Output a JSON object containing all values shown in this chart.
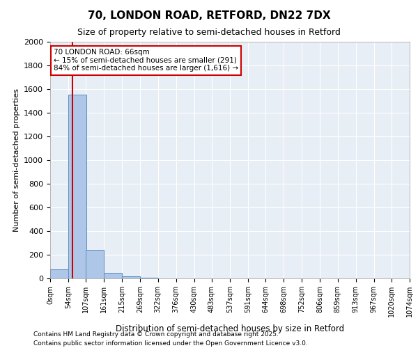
{
  "title1": "70, LONDON ROAD, RETFORD, DN22 7DX",
  "title2": "Size of property relative to semi-detached houses in Retford",
  "xlabel": "Distribution of semi-detached houses by size in Retford",
  "ylabel": "Number of semi-detached properties",
  "bin_labels": [
    "0sqm",
    "54sqm",
    "107sqm",
    "161sqm",
    "215sqm",
    "269sqm",
    "322sqm",
    "376sqm",
    "430sqm",
    "483sqm",
    "537sqm",
    "591sqm",
    "644sqm",
    "698sqm",
    "752sqm",
    "806sqm",
    "859sqm",
    "913sqm",
    "967sqm",
    "1020sqm",
    "1074sqm"
  ],
  "bin_edges": [
    0,
    54,
    107,
    161,
    215,
    269,
    322,
    376,
    430,
    483,
    537,
    591,
    644,
    698,
    752,
    806,
    859,
    913,
    967,
    1020,
    1074
  ],
  "bar_heights": [
    75,
    1550,
    240,
    45,
    18,
    5,
    2,
    1,
    1,
    0,
    0,
    0,
    0,
    0,
    0,
    0,
    0,
    0,
    0,
    0
  ],
  "bar_color": "#aec6e8",
  "bar_edge_color": "#5a8fc0",
  "red_line_x": 66,
  "annotation_title": "70 LONDON ROAD: 66sqm",
  "annotation_line1": "← 15% of semi-detached houses are smaller (291)",
  "annotation_line2": "84% of semi-detached houses are larger (1,616) →",
  "annotation_box_color": "#ffffff",
  "annotation_box_edge": "#cc0000",
  "red_line_color": "#cc0000",
  "ylim": [
    0,
    2000
  ],
  "yticks": [
    0,
    200,
    400,
    600,
    800,
    1000,
    1200,
    1400,
    1600,
    1800,
    2000
  ],
  "background_color": "#e8eef5",
  "footer1": "Contains HM Land Registry data © Crown copyright and database right 2025.",
  "footer2": "Contains public sector information licensed under the Open Government Licence v3.0."
}
